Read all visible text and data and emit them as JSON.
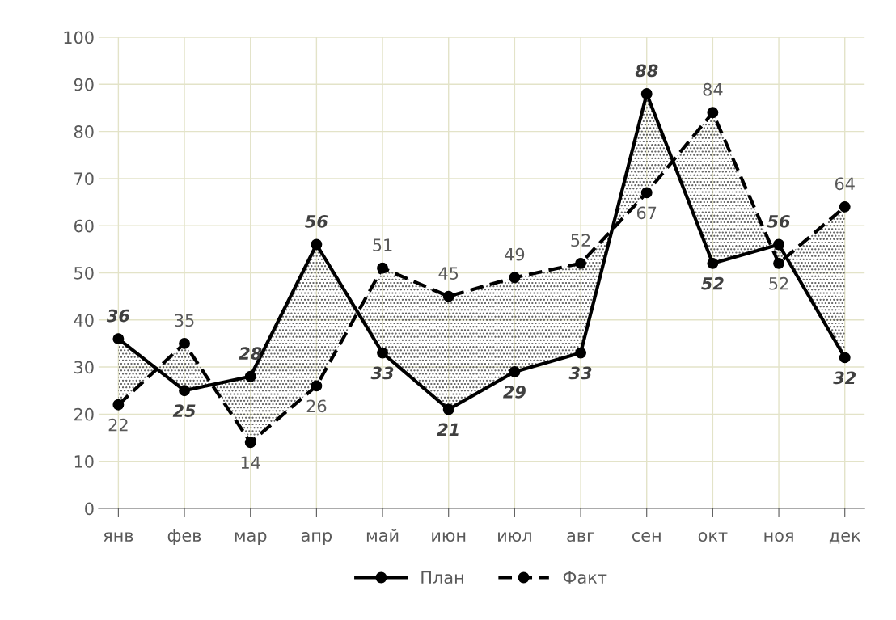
{
  "chart_data": {
    "type": "line",
    "categories": [
      "янв",
      "фев",
      "мар",
      "апр",
      "май",
      "июн",
      "июл",
      "авг",
      "сен",
      "окт",
      "ноя",
      "дек"
    ],
    "series": [
      {
        "name": "План",
        "color": "#000000",
        "line_style": "solid",
        "values": [
          36,
          25,
          28,
          56,
          33,
          21,
          29,
          33,
          88,
          52,
          56,
          32
        ]
      },
      {
        "name": "Факт",
        "color": "#000000",
        "line_style": "dashed",
        "values": [
          22,
          35,
          14,
          26,
          51,
          45,
          49,
          52,
          67,
          84,
          52,
          64
        ],
        "lower": [
          36,
          25,
          28,
          56,
          33,
          21,
          29,
          33,
          88,
          52,
          56,
          32
        ],
        "upper": [
          22,
          35,
          14,
          26,
          51,
          45,
          49,
          52,
          67,
          84,
          52,
          64
        ]
      }
    ],
    "ylim": [
      0,
      100
    ],
    "yticks": [
      0,
      10,
      20,
      30,
      40,
      50,
      60,
      70,
      80,
      90,
      100
    ],
    "grid": true,
    "legend": "bottom",
    "marker": "circle",
    "data_labels": true
  }
}
